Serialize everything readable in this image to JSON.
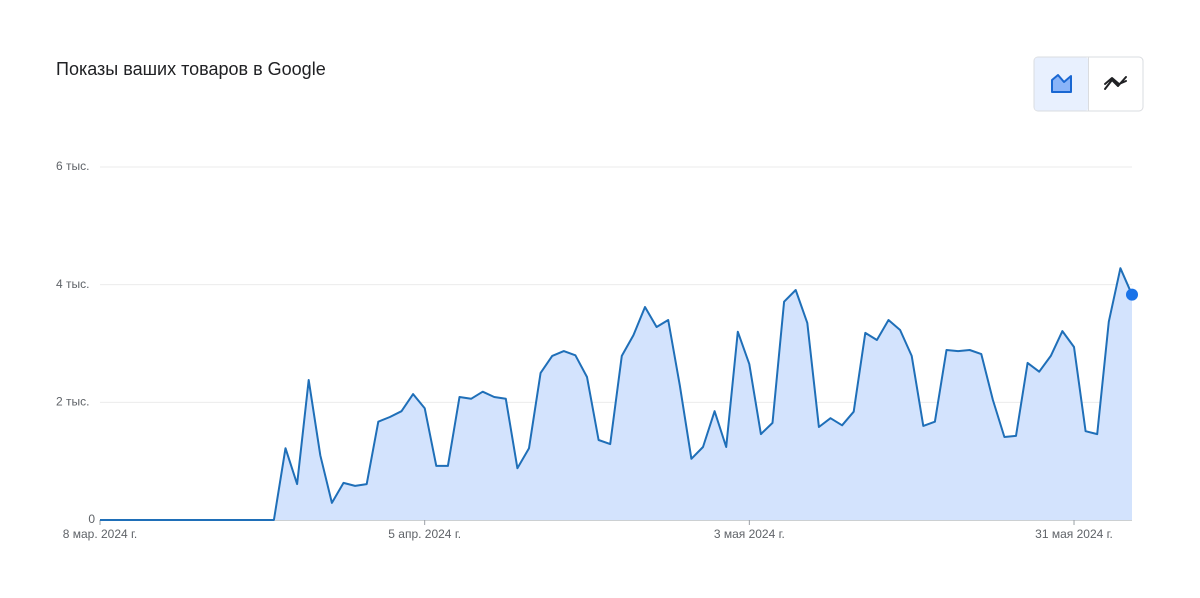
{
  "chart_data": {
    "type": "area",
    "title": "Показы ваших товаров в Google",
    "x": [
      "2024-03-08",
      "2024-03-09",
      "2024-03-10",
      "2024-03-11",
      "2024-03-12",
      "2024-03-13",
      "2024-03-14",
      "2024-03-15",
      "2024-03-16",
      "2024-03-17",
      "2024-03-18",
      "2024-03-19",
      "2024-03-20",
      "2024-03-21",
      "2024-03-22",
      "2024-03-23",
      "2024-03-24",
      "2024-03-25",
      "2024-03-26",
      "2024-03-27",
      "2024-03-28",
      "2024-03-29",
      "2024-03-30",
      "2024-03-31",
      "2024-04-01",
      "2024-04-02",
      "2024-04-03",
      "2024-04-04",
      "2024-04-05",
      "2024-04-06",
      "2024-04-07",
      "2024-04-08",
      "2024-04-09",
      "2024-04-10",
      "2024-04-11",
      "2024-04-12",
      "2024-04-13",
      "2024-04-14",
      "2024-04-15",
      "2024-04-16",
      "2024-04-17",
      "2024-04-18",
      "2024-04-19",
      "2024-04-20",
      "2024-04-21",
      "2024-04-22",
      "2024-04-23",
      "2024-04-24",
      "2024-04-25",
      "2024-04-26",
      "2024-04-27",
      "2024-04-28",
      "2024-04-29",
      "2024-04-30",
      "2024-05-01",
      "2024-05-02",
      "2024-05-03",
      "2024-05-04",
      "2024-05-05",
      "2024-05-06",
      "2024-05-07",
      "2024-05-08",
      "2024-05-09",
      "2024-05-10",
      "2024-05-11",
      "2024-05-12",
      "2024-05-13",
      "2024-05-14",
      "2024-05-15",
      "2024-05-16",
      "2024-05-17",
      "2024-05-18",
      "2024-05-19",
      "2024-05-20",
      "2024-05-21",
      "2024-05-22",
      "2024-05-23",
      "2024-05-24",
      "2024-05-25",
      "2024-05-26",
      "2024-05-27",
      "2024-05-28",
      "2024-05-29",
      "2024-05-30",
      "2024-05-31",
      "2024-06-01",
      "2024-06-02",
      "2024-06-03",
      "2024-06-04",
      "2024-06-05"
    ],
    "values": [
      0,
      0,
      0,
      0,
      0,
      0,
      0,
      0,
      0,
      0,
      0,
      0,
      0,
      0,
      0,
      0,
      1220,
      610,
      2380,
      1100,
      290,
      630,
      580,
      610,
      1670,
      1750,
      1850,
      2140,
      1900,
      920,
      920,
      2090,
      2060,
      2180,
      2090,
      2060,
      880,
      1220,
      2500,
      2790,
      2870,
      2800,
      2430,
      1360,
      1290,
      2790,
      3140,
      3620,
      3280,
      3400,
      2290,
      1040,
      1240,
      1850,
      1240,
      3200,
      2650,
      1460,
      1650,
      3710,
      3910,
      3350,
      1580,
      1730,
      1610,
      1840,
      3180,
      3060,
      3400,
      3230,
      2790,
      1600,
      1670,
      2890,
      2870,
      2890,
      2820,
      2040,
      1410,
      1430,
      2670,
      2520,
      2790,
      3210,
      2940,
      1510,
      1460,
      3370,
      4280,
      3830
    ],
    "color": "#1f6fb8",
    "fill": "#d3e3fd",
    "xlim": [
      "2024-03-08",
      "2024-06-05"
    ],
    "xticks": [
      {
        "value": "2024-03-08",
        "label": "8 мар. 2024 г."
      },
      {
        "value": "2024-04-05",
        "label": "5 апр. 2024 г."
      },
      {
        "value": "2024-05-03",
        "label": "3 мая 2024 г."
      },
      {
        "value": "2024-05-31",
        "label": "31 мая 2024 г."
      }
    ],
    "ylim": [
      0,
      6000
    ],
    "yticks": [
      0,
      {
        "value": 2000,
        "label": "2 тыс."
      },
      {
        "value": 4000,
        "label": "4 тыс."
      },
      {
        "value": 6000,
        "label": "6 тыс."
      }
    ],
    "grid": true
  }
}
